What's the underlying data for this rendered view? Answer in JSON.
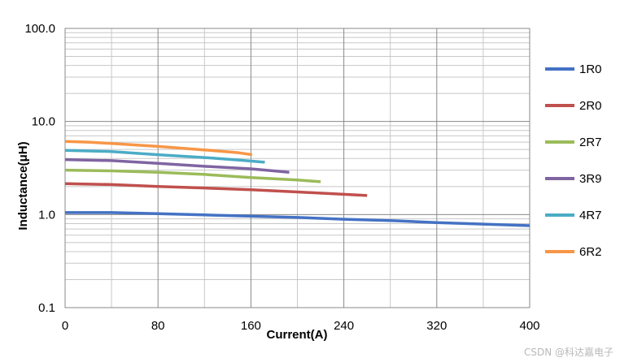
{
  "chart_data": {
    "type": "line",
    "xlabel": "Current(A)",
    "ylabel": "Inductance(μH)",
    "xlim": [
      0,
      400
    ],
    "ylim": [
      0.1,
      100
    ],
    "yscale": "log",
    "grid": true,
    "legend_position": "right",
    "x_ticks": [
      "0",
      "80",
      "160",
      "240",
      "320",
      "400"
    ],
    "x_tick_values": [
      0,
      80,
      160,
      240,
      320,
      400
    ],
    "y_ticks": [
      "100.0",
      "10.0",
      "1.0",
      "0.1"
    ],
    "y_tick_values": [
      100,
      10,
      1,
      0.1
    ],
    "series": [
      {
        "name": "1R0",
        "color": "#4472c4",
        "x": [
          0,
          40,
          80,
          120,
          160,
          200,
          240,
          280,
          320,
          360,
          400
        ],
        "y": [
          1.05,
          1.05,
          1.02,
          0.99,
          0.96,
          0.93,
          0.89,
          0.86,
          0.82,
          0.79,
          0.76
        ]
      },
      {
        "name": "2R0",
        "color": "#c0504d",
        "x": [
          0,
          40,
          80,
          120,
          160,
          200,
          240,
          260
        ],
        "y": [
          2.15,
          2.1,
          2.0,
          1.93,
          1.85,
          1.75,
          1.65,
          1.6
        ]
      },
      {
        "name": "2R7",
        "color": "#9bbb59",
        "x": [
          0,
          40,
          80,
          120,
          160,
          200,
          220
        ],
        "y": [
          3.0,
          2.95,
          2.85,
          2.7,
          2.5,
          2.35,
          2.25
        ]
      },
      {
        "name": "3R9",
        "color": "#8064a2",
        "x": [
          0,
          40,
          80,
          120,
          160,
          193
        ],
        "y": [
          3.9,
          3.8,
          3.55,
          3.3,
          3.1,
          2.85
        ]
      },
      {
        "name": "4R7",
        "color": "#4bacc6",
        "x": [
          0,
          40,
          80,
          120,
          150,
          172
        ],
        "y": [
          4.9,
          4.75,
          4.4,
          4.1,
          3.85,
          3.65
        ]
      },
      {
        "name": "6R2",
        "color": "#f79646",
        "x": [
          0,
          20,
          40,
          80,
          120,
          150,
          161
        ],
        "y": [
          6.1,
          6.0,
          5.8,
          5.4,
          4.95,
          4.6,
          4.4
        ]
      }
    ]
  },
  "watermark": "CSDN @科达嘉电子"
}
